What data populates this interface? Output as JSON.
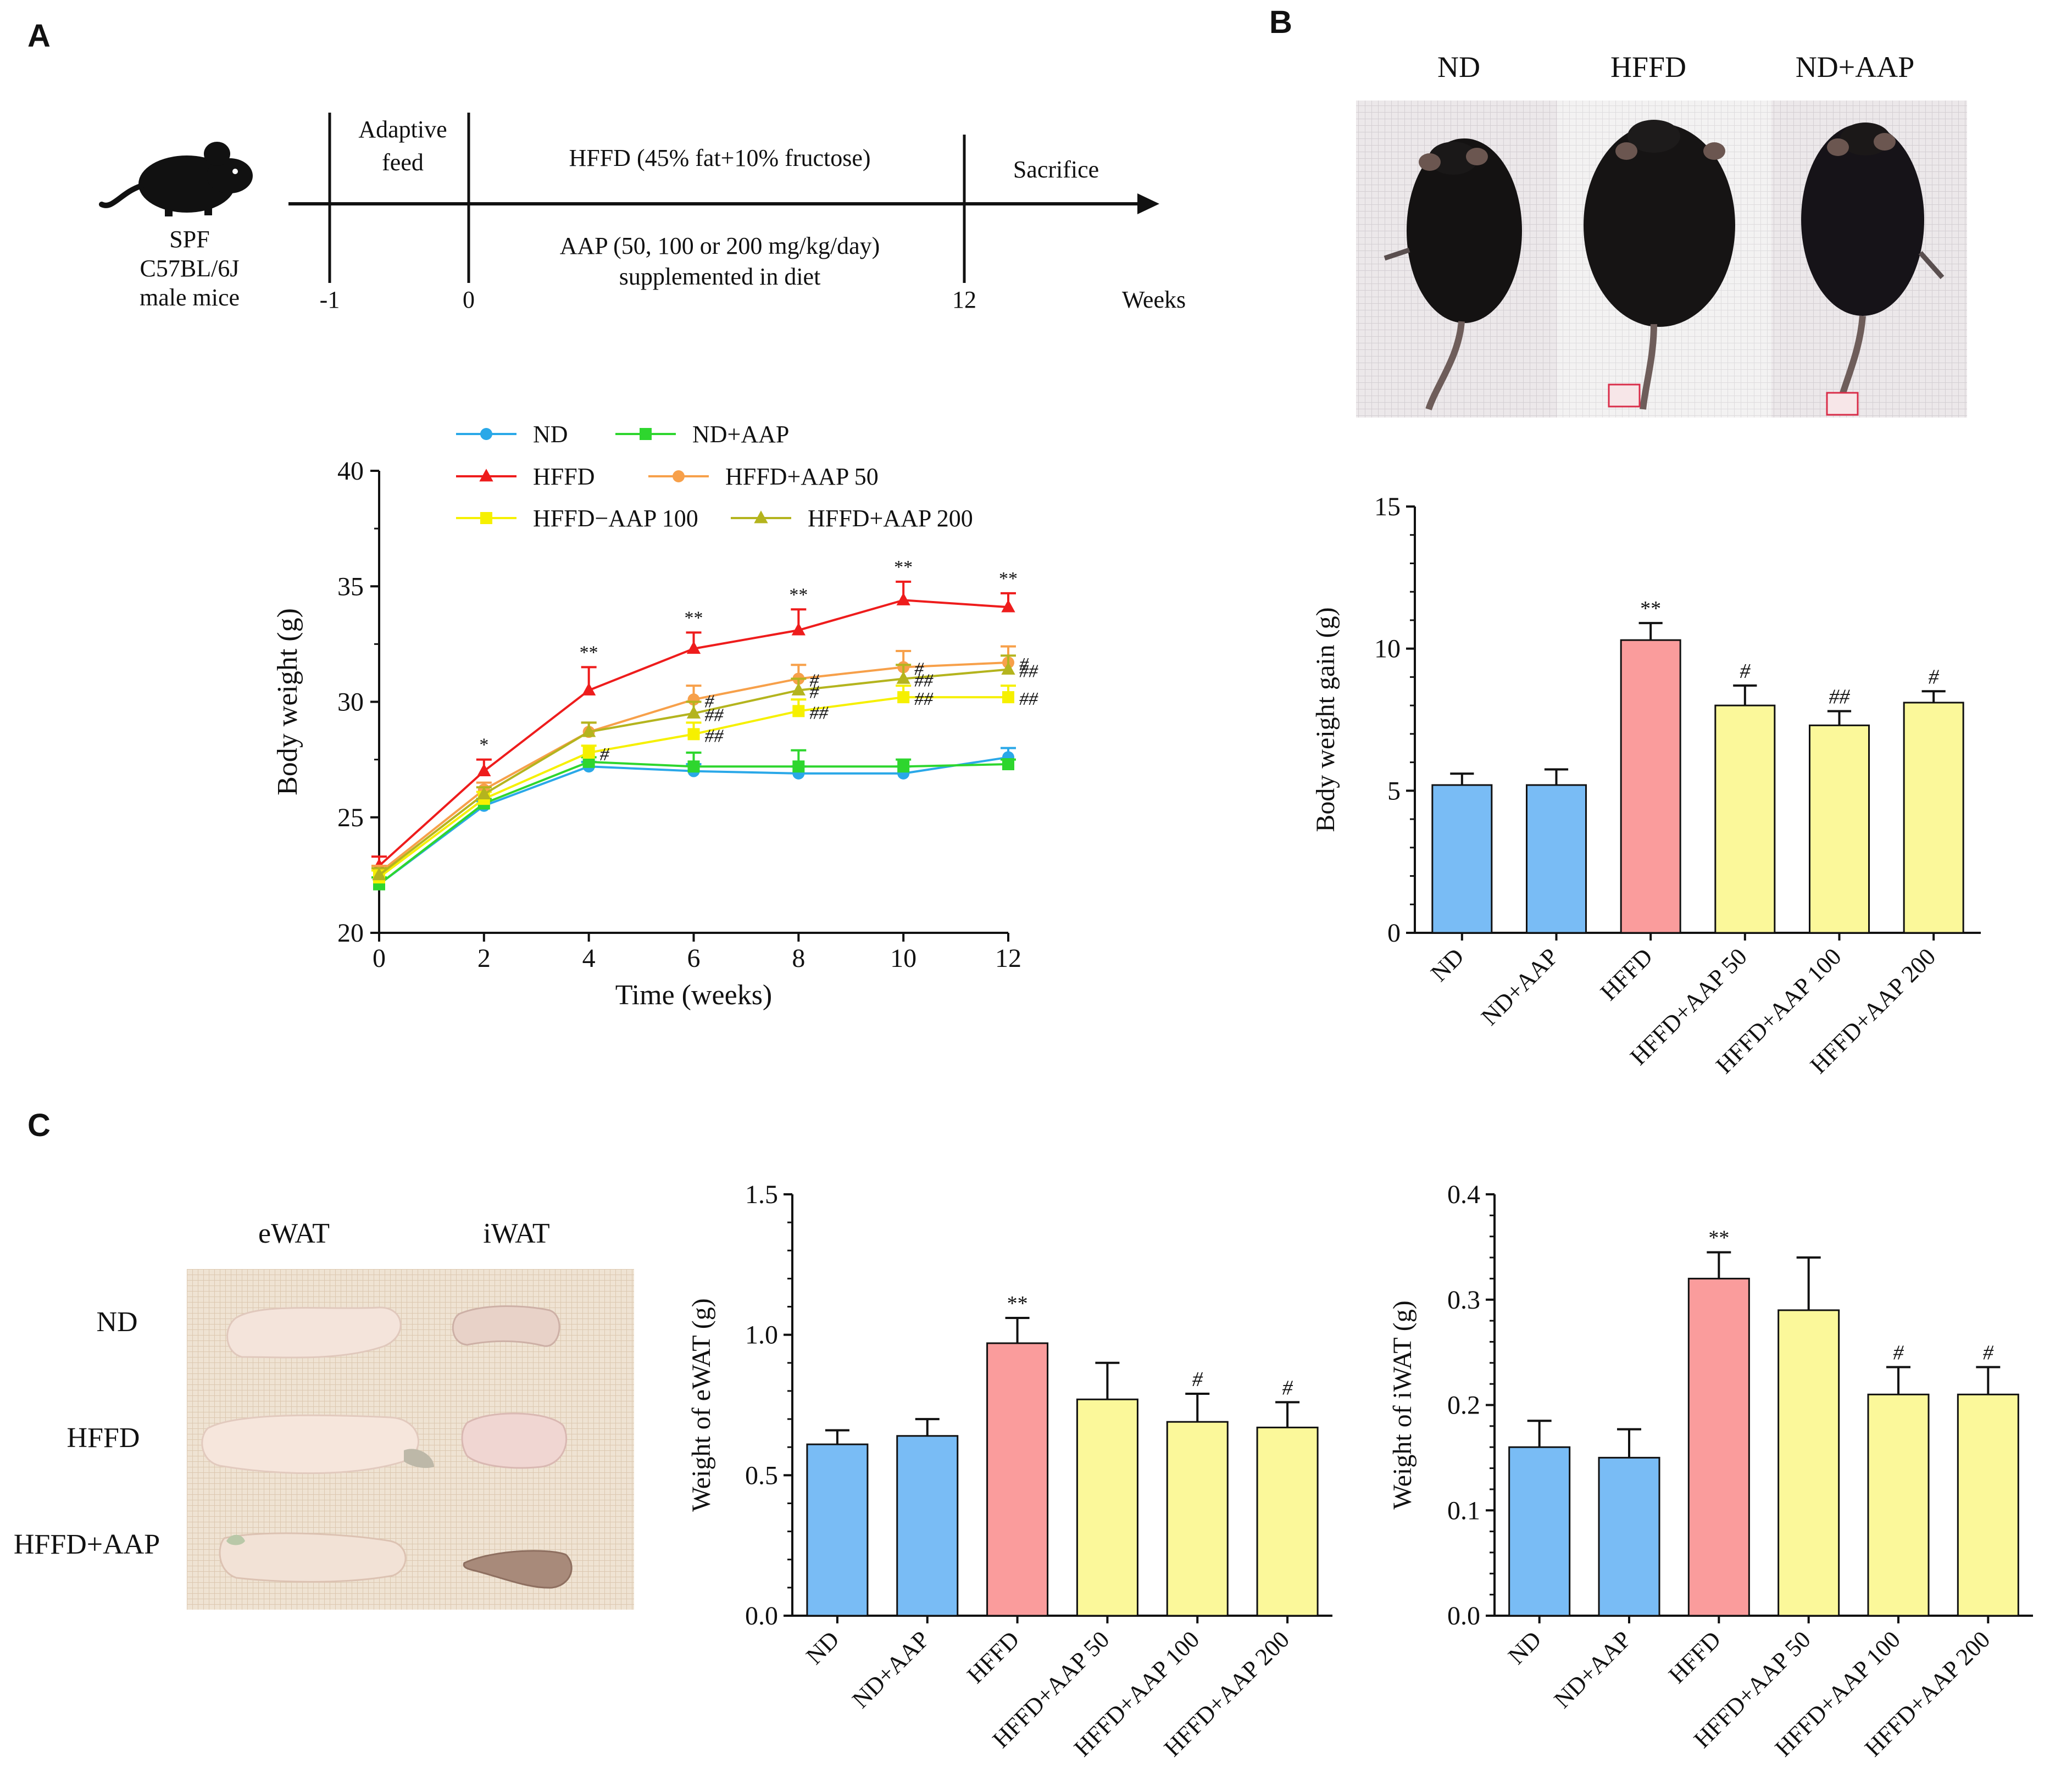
{
  "panel_letters": [
    "A",
    "B",
    "C"
  ],
  "timeline": {
    "mouse_label": [
      "SPF",
      "C57BL/6J",
      "male mice"
    ],
    "adaptive_label": [
      "Adaptive",
      "feed"
    ],
    "hffd_label": "HFFD (45% fat+10% fructose)",
    "sacrifice_label": "Sacrifice",
    "aap_label": [
      "AAP (50, 100 or 200 mg/kg/day)",
      "supplemented in diet"
    ],
    "ticks": [
      "-1",
      "0",
      "12"
    ],
    "unit_label": "Weeks"
  },
  "photos_b": {
    "labels": [
      "ND",
      "HFFD",
      "ND+AAP"
    ]
  },
  "photos_c": {
    "col_labels": [
      "eWAT",
      "iWAT"
    ],
    "row_labels": [
      "ND",
      "HFFD",
      "HFFD+AAP"
    ]
  },
  "colors": {
    "nd": "#2aa8e8",
    "nd_aap": "#2ed62e",
    "hffd": "#ee1c1c",
    "hffd_aap50": "#f7a04a",
    "hffd_aap100": "#f6f000",
    "hffd_aap200": "#b4b41e",
    "bar_blue": "#79bcf5",
    "bar_pink": "#fa9c9c",
    "bar_yellow": "#fbf89a"
  },
  "chart_data": [
    {
      "type": "line",
      "xlabel": "Time (weeks)",
      "ylabel": "Body weight (g)",
      "x": [
        0,
        2,
        4,
        6,
        8,
        10,
        12
      ],
      "xticks": [
        "0",
        "2",
        "4",
        "6",
        "8",
        "10",
        "12"
      ],
      "ylim": [
        20,
        40
      ],
      "yticks": [
        "20",
        "25",
        "30",
        "35",
        "40"
      ],
      "legend_position": "top",
      "series": [
        {
          "name": "ND",
          "marker": "circle",
          "color": "#2aa8e8",
          "values": [
            22.1,
            25.5,
            27.2,
            27.0,
            26.9,
            26.9,
            27.6
          ],
          "err": [
            0.3,
            0.2,
            0.2,
            0.3,
            0.3,
            0.3,
            0.4
          ],
          "marks": []
        },
        {
          "name": "ND+AAP",
          "marker": "square",
          "color": "#2ed62e",
          "values": [
            22.1,
            25.6,
            27.4,
            27.2,
            27.2,
            27.2,
            27.3
          ],
          "err": [
            0.3,
            0.2,
            0.2,
            0.6,
            0.7,
            0.3,
            0.2
          ],
          "marks": []
        },
        {
          "name": "HFFD",
          "marker": "triangle",
          "color": "#ee1c1c",
          "values": [
            22.9,
            27.0,
            30.5,
            32.3,
            33.1,
            34.4,
            34.1
          ],
          "err": [
            0.4,
            0.5,
            1.0,
            0.7,
            0.9,
            0.8,
            0.6
          ],
          "marks": [
            "",
            "*",
            "**",
            "**",
            "**",
            "**",
            "**"
          ]
        },
        {
          "name": "HFFD+AAP 50",
          "marker": "circle",
          "color": "#f7a04a",
          "values": [
            22.6,
            26.2,
            28.7,
            30.1,
            31.0,
            31.5,
            31.7
          ],
          "err": [
            0.3,
            0.3,
            0.4,
            0.6,
            0.6,
            0.7,
            0.7
          ],
          "marks": [
            "",
            "",
            "",
            "#",
            "#",
            "#",
            "#"
          ]
        },
        {
          "name": "HFFD−AAP 100",
          "marker": "square",
          "color": "#f6f000",
          "values": [
            22.4,
            25.8,
            27.8,
            28.6,
            29.6,
            30.2,
            30.2
          ],
          "err": [
            0.3,
            0.3,
            0.3,
            0.5,
            0.5,
            0.5,
            0.5
          ],
          "marks": [
            "",
            "",
            "#",
            "##",
            "##",
            "##",
            "##"
          ]
        },
        {
          "name": "HFFD+AAP 200",
          "marker": "triangle",
          "color": "#b4b41e",
          "values": [
            22.5,
            26.0,
            28.7,
            29.5,
            30.5,
            31.0,
            31.4
          ],
          "err": [
            0.3,
            0.3,
            0.4,
            0.5,
            0.5,
            0.6,
            0.6
          ],
          "marks": [
            "",
            "",
            "",
            "##",
            "#",
            "##",
            "##"
          ]
        }
      ]
    },
    {
      "type": "bar",
      "ylabel": "Body weight gain (g)",
      "ylim": [
        0,
        15
      ],
      "yticks": [
        "0",
        "5",
        "10",
        "15"
      ],
      "categories": [
        "ND",
        "ND+AAP",
        "HFFD",
        "HFFD+AAP 50",
        "HFFD+AAP 100",
        "HFFD+AAP 200"
      ],
      "values": [
        5.2,
        5.2,
        10.3,
        8.0,
        7.3,
        8.1
      ],
      "errors": [
        0.4,
        0.55,
        0.6,
        0.7,
        0.5,
        0.4
      ],
      "bar_colors": [
        "#79bcf5",
        "#79bcf5",
        "#fa9c9c",
        "#fbf89a",
        "#fbf89a",
        "#fbf89a"
      ],
      "marks": [
        "",
        "",
        "**",
        "#",
        "##",
        "#"
      ]
    },
    {
      "type": "bar",
      "ylabel": "Weight of eWAT (g)",
      "ylim": [
        0,
        1.5
      ],
      "yticks": [
        "0.0",
        "0.5",
        "1.0",
        "1.5"
      ],
      "categories": [
        "ND",
        "ND+AAP",
        "HFFD",
        "HFFD+AAP 50",
        "HFFD+AAP 100",
        "HFFD+AAP 200"
      ],
      "values": [
        0.61,
        0.64,
        0.97,
        0.77,
        0.69,
        0.67
      ],
      "errors": [
        0.05,
        0.06,
        0.09,
        0.13,
        0.1,
        0.09
      ],
      "bar_colors": [
        "#79bcf5",
        "#79bcf5",
        "#fa9c9c",
        "#fbf89a",
        "#fbf89a",
        "#fbf89a"
      ],
      "marks": [
        "",
        "",
        "**",
        "",
        "#",
        "#"
      ]
    },
    {
      "type": "bar",
      "ylabel": "Weight of iWAT (g)",
      "ylim": [
        0,
        0.4
      ],
      "yticks": [
        "0.0",
        "0.1",
        "0.2",
        "0.3",
        "0.4"
      ],
      "categories": [
        "ND",
        "ND+AAP",
        "HFFD",
        "HFFD+AAP 50",
        "HFFD+AAP 100",
        "HFFD+AAP 200"
      ],
      "values": [
        0.16,
        0.15,
        0.32,
        0.29,
        0.21,
        0.21
      ],
      "errors": [
        0.025,
        0.027,
        0.025,
        0.05,
        0.026,
        0.026
      ],
      "bar_colors": [
        "#79bcf5",
        "#79bcf5",
        "#fa9c9c",
        "#fbf89a",
        "#fbf89a",
        "#fbf89a"
      ],
      "marks": [
        "",
        "",
        "**",
        "",
        "#",
        "#"
      ]
    }
  ]
}
